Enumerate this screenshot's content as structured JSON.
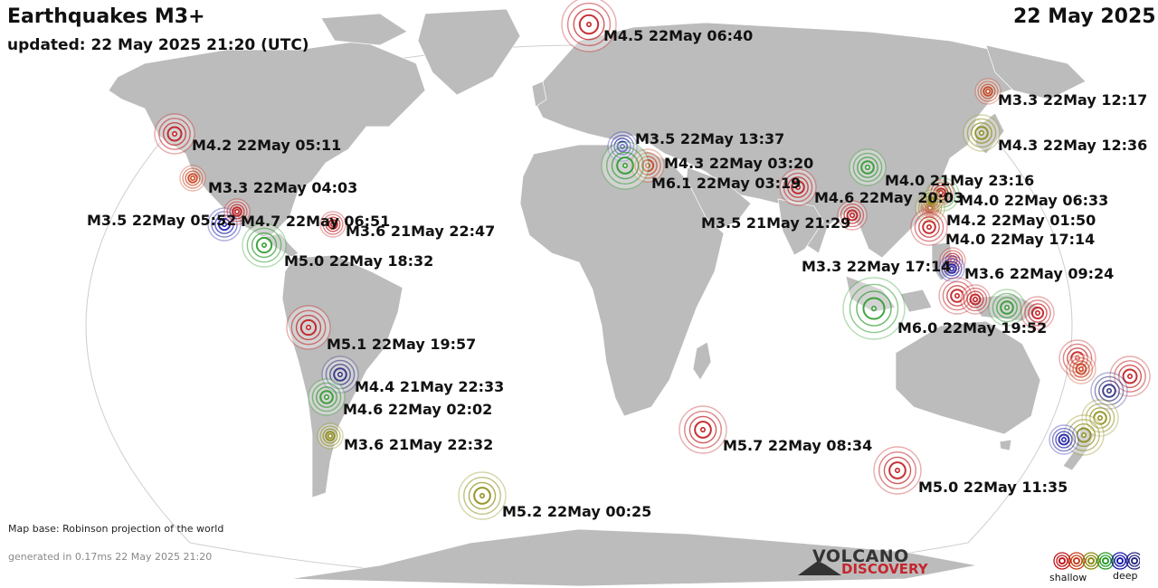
{
  "header": {
    "title": "Earthquakes M3+",
    "updated": "updated: 22 May 2025 21:20 (UTC)",
    "date": "22 May 2025"
  },
  "footer": {
    "map_base": "Map base: Robinson projection of the world",
    "generated": "generated in 0.17ms 22 May 2025 21:20"
  },
  "logo": {
    "line1": "VOLCANO",
    "line2": "DISCOVERY"
  },
  "legend": {
    "shallow": "shallow",
    "deep": "deep",
    "colors": [
      "#c0161a",
      "#c7401a",
      "#8a8a14",
      "#2a9a2a",
      "#1a1aa8",
      "#2a2a80"
    ]
  },
  "colors": {
    "land": "#bcbcbc",
    "ocean": "#ffffff",
    "red": "#c0161a",
    "orange": "#c7401a",
    "olive": "#8a8a14",
    "green": "#2a9a2a",
    "blue": "#1a1aa8",
    "navy": "#2a2a80"
  },
  "quakes": [
    {
      "label": "M4.5 22May 06:40",
      "color": "red"
    },
    {
      "label": "M4.2 22May 05:11",
      "color": "red"
    },
    {
      "label": "M3.3 22May 04:03",
      "color": "orange"
    },
    {
      "label": "M3.5 22May 05:52",
      "color": "blue"
    },
    {
      "label": "M4.7 22May 06:51",
      "color": "red"
    },
    {
      "label": "M3.6 21May 22:47",
      "color": "red"
    },
    {
      "label": "M5.0 22May 18:32",
      "color": "green"
    },
    {
      "label": "M5.1 22May 19:57",
      "color": "red"
    },
    {
      "label": "M4.4 21May 22:33",
      "color": "navy"
    },
    {
      "label": "M4.6 22May 02:02",
      "color": "green"
    },
    {
      "label": "M3.6 21May 22:32",
      "color": "olive"
    },
    {
      "label": "M5.2 22May 00:25",
      "color": "olive"
    },
    {
      "label": "M3.5 22May 13:37",
      "color": "blue"
    },
    {
      "label": "M4.3 22May 03:20",
      "color": "orange"
    },
    {
      "label": "M6.1 22May 03:19",
      "color": "green"
    },
    {
      "label": "M4.6 22May 20:03",
      "color": "red"
    },
    {
      "label": "M3.5 21May 21:29",
      "color": "red"
    },
    {
      "label": "M5.7 22May 08:34",
      "color": "red"
    },
    {
      "label": "M4.0 21May 23:16",
      "color": "green"
    },
    {
      "label": "M4.0 22May 06:33",
      "color": "green"
    },
    {
      "label": "M4.2 22May 01:50",
      "color": "olive"
    },
    {
      "label": "M4.0 22May 17:14",
      "color": "red"
    },
    {
      "label": "M3.3 22May 17:14",
      "color": "red"
    },
    {
      "label": "M3.6 22May 09:24",
      "color": "blue"
    },
    {
      "label": "M6.0 22May 19:52",
      "color": "green"
    },
    {
      "label": "M3.3 22May 12:17",
      "color": "orange"
    },
    {
      "label": "M4.3 22May 12:36",
      "color": "olive"
    },
    {
      "label": "M5.0 22May 11:35",
      "color": "red"
    },
    {
      "label": "",
      "color": "red"
    },
    {
      "label": "",
      "color": "red"
    },
    {
      "label": "",
      "color": "green"
    },
    {
      "label": "",
      "color": "red"
    },
    {
      "label": "",
      "color": "red"
    },
    {
      "label": "",
      "color": "orange"
    },
    {
      "label": "",
      "color": "red"
    },
    {
      "label": "",
      "color": "navy"
    },
    {
      "label": "",
      "color": "olive"
    },
    {
      "label": "",
      "color": "olive"
    },
    {
      "label": "",
      "color": "blue"
    },
    {
      "label": "",
      "color": "red"
    },
    {
      "label": "",
      "color": "red"
    },
    {
      "label": "",
      "color": "olive"
    }
  ]
}
